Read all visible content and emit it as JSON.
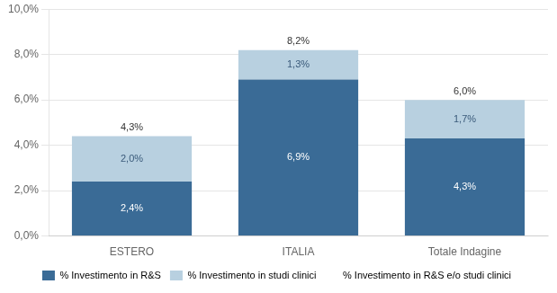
{
  "chart_data": {
    "type": "bar",
    "stacked": true,
    "categories": [
      "ESTERO",
      "ITALIA",
      "Totale Indagine"
    ],
    "series": [
      {
        "name": "% Investimento in R&S",
        "color": "#3a6b96",
        "values": [
          2.4,
          6.9,
          4.3
        ],
        "value_labels": [
          "2,4%",
          "6,9%",
          "4,3%"
        ]
      },
      {
        "name": "% Investimento in studi clinici",
        "color": "#b8d0e0",
        "values": [
          2.0,
          1.3,
          1.7
        ],
        "value_labels": [
          "2,0%",
          "1,3%",
          "1,7%"
        ]
      },
      {
        "name": "% Investimento in R&S e/o studi clinici",
        "color": "#ffffff",
        "type": "label",
        "values": [
          4.3,
          8.2,
          6.0
        ],
        "value_labels": [
          "4,3%",
          "8,2%",
          "6,0%"
        ]
      }
    ],
    "ylim": [
      0,
      10
    ],
    "yticks": [
      {
        "value": 0,
        "label": "0,0%"
      },
      {
        "value": 2,
        "label": "2,0%"
      },
      {
        "value": 4,
        "label": "4,0%"
      },
      {
        "value": 6,
        "label": "6,0%"
      },
      {
        "value": 8,
        "label": "8,0%"
      },
      {
        "value": 10,
        "label": "10,0%"
      }
    ],
    "grid": true,
    "legend": "bottom",
    "data_labels": true
  }
}
